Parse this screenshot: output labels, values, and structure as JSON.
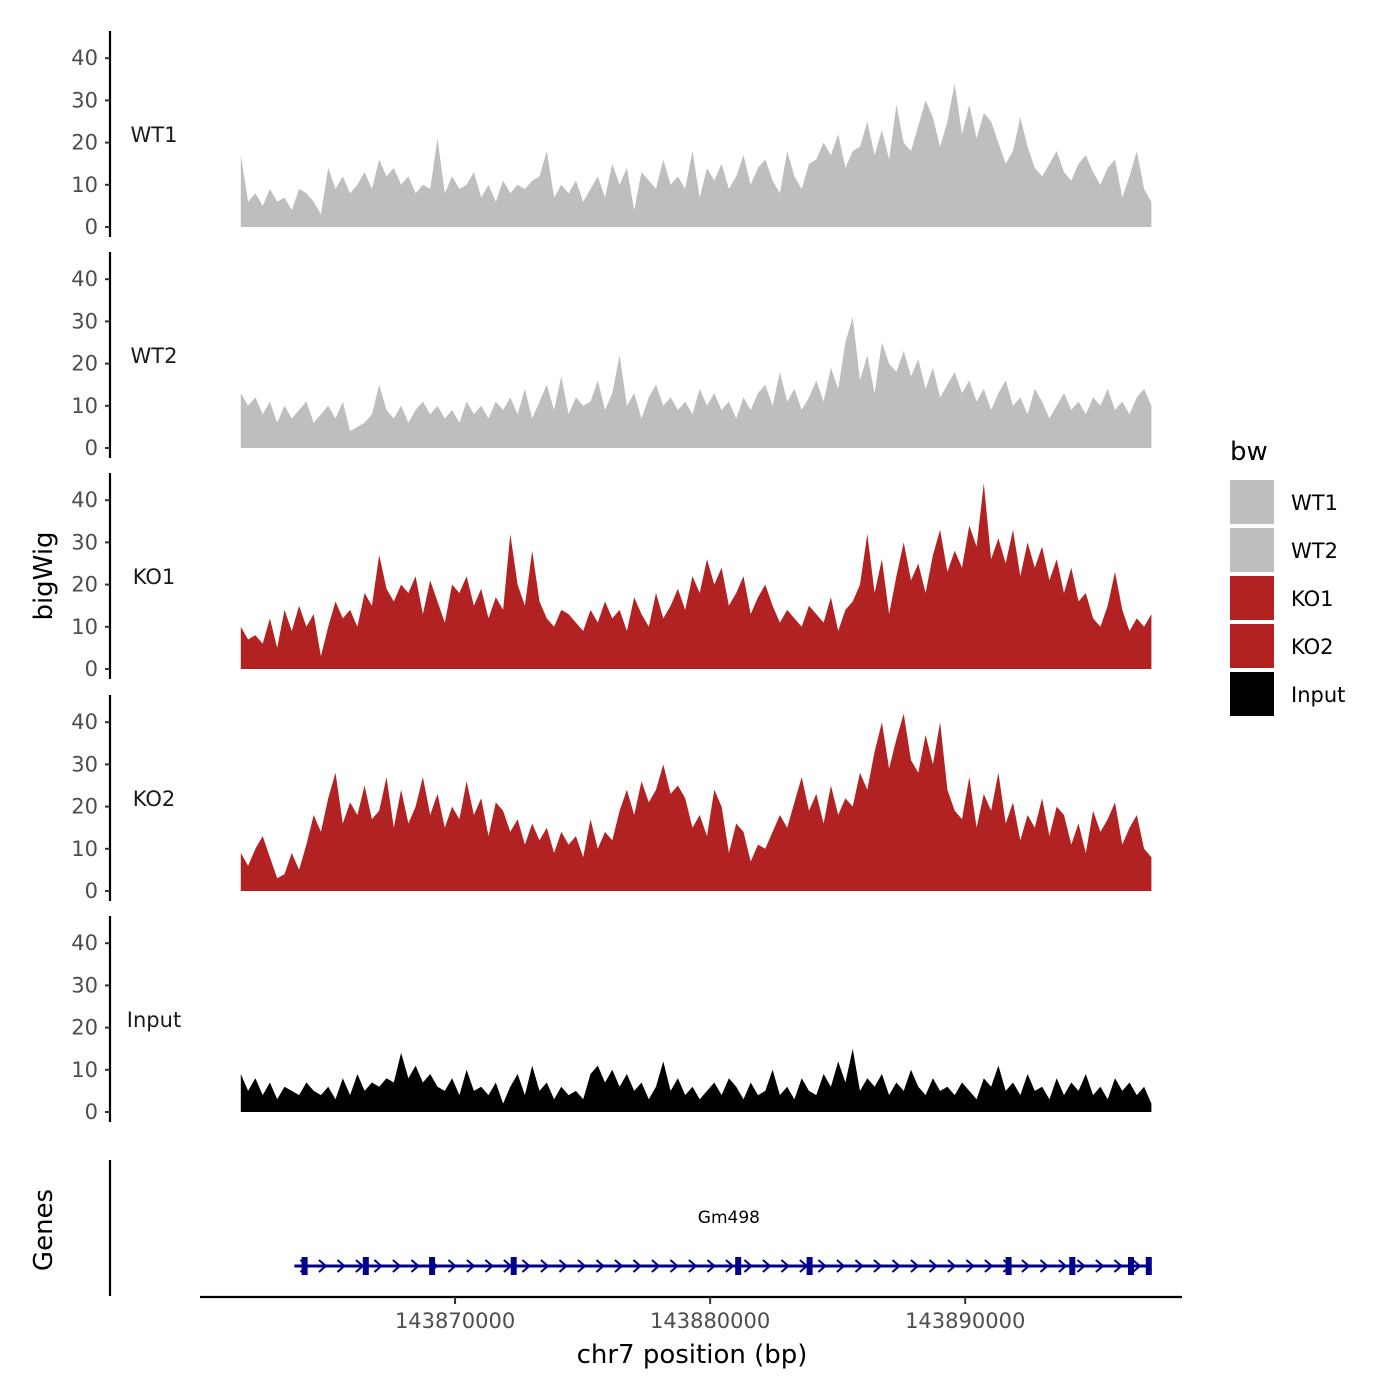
{
  "chart_data": {
    "type": "area",
    "title": "",
    "ylabel": "bigWig",
    "xlabel": "chr7 position (bp)",
    "gene_track_label": "Genes",
    "xlim": [
      143860000,
      143898500
    ],
    "ylim": [
      0,
      45
    ],
    "yticks": [
      0,
      10,
      20,
      30,
      40
    ],
    "ytick_labels": [
      "0",
      "10",
      "20",
      "30",
      "40"
    ],
    "xticks": [
      143870000,
      143880000,
      143890000
    ],
    "xtick_labels": [
      "143870000",
      "143880000",
      "143890000"
    ],
    "x_start": 143861600,
    "x_end": 143897300,
    "legend": {
      "title": "bw",
      "position": "right",
      "entries": [
        {
          "label": "WT1",
          "color": "#bebebe"
        },
        {
          "label": "WT2",
          "color": "#bebebe"
        },
        {
          "label": "KO1",
          "color": "#b22222"
        },
        {
          "label": "KO2",
          "color": "#b22222"
        },
        {
          "label": "Input",
          "color": "#000000"
        }
      ]
    },
    "series": [
      {
        "name": "WT1",
        "color": "#bebebe",
        "values": [
          17,
          6,
          8,
          5,
          9,
          6,
          7,
          4,
          9,
          8,
          6,
          3,
          14,
          9,
          12,
          8,
          10,
          13,
          9,
          16,
          12,
          14,
          10,
          12,
          8,
          10,
          9,
          21,
          8,
          12,
          9,
          10,
          13,
          7,
          10,
          6,
          11,
          8,
          10,
          9,
          11,
          12,
          18,
          7,
          10,
          8,
          11,
          6,
          9,
          12,
          7,
          15,
          10,
          14,
          4,
          13,
          11,
          9,
          16,
          10,
          12,
          9,
          18,
          7,
          14,
          11,
          15,
          9,
          12,
          17,
          10,
          14,
          16,
          11,
          8,
          18,
          12,
          9,
          15,
          16,
          20,
          17,
          22,
          14,
          18,
          19,
          25,
          17,
          23,
          16,
          29,
          20,
          18,
          24,
          30,
          26,
          19,
          25,
          34,
          22,
          29,
          21,
          27,
          25,
          20,
          15,
          18,
          26,
          19,
          14,
          12,
          15,
          18,
          13,
          11,
          15,
          17,
          13,
          10,
          14,
          16,
          7,
          12,
          18,
          9,
          6
        ]
      },
      {
        "name": "WT2",
        "color": "#bebebe",
        "values": [
          13,
          10,
          12,
          8,
          11,
          6,
          10,
          7,
          9,
          11,
          6,
          8,
          10,
          7,
          11,
          4,
          5,
          6,
          8,
          15,
          9,
          7,
          10,
          6,
          9,
          11,
          8,
          10,
          7,
          9,
          6,
          11,
          8,
          10,
          7,
          11,
          9,
          12,
          8,
          14,
          7,
          11,
          15,
          9,
          17,
          8,
          12,
          10,
          11,
          16,
          9,
          13,
          22,
          10,
          13,
          7,
          12,
          15,
          10,
          12,
          9,
          11,
          8,
          14,
          10,
          13,
          9,
          11,
          7,
          12,
          9,
          13,
          15,
          10,
          18,
          11,
          14,
          9,
          12,
          16,
          11,
          19,
          14,
          25,
          31,
          16,
          22,
          13,
          25,
          20,
          18,
          23,
          17,
          21,
          14,
          19,
          12,
          15,
          18,
          13,
          16,
          11,
          14,
          9,
          13,
          16,
          10,
          12,
          8,
          14,
          11,
          7,
          10,
          13,
          9,
          11,
          8,
          12,
          10,
          14,
          9,
          11,
          8,
          12,
          14,
          10
        ]
      },
      {
        "name": "KO1",
        "color": "#b22222",
        "values": [
          10,
          7,
          8,
          6,
          12,
          5,
          14,
          9,
          15,
          10,
          13,
          3,
          10,
          16,
          12,
          14,
          10,
          18,
          15,
          27,
          19,
          16,
          20,
          18,
          22,
          13,
          21,
          16,
          11,
          20,
          18,
          22,
          15,
          19,
          12,
          17,
          14,
          32,
          20,
          15,
          28,
          16,
          12,
          10,
          14,
          13,
          11,
          9,
          14,
          11,
          16,
          12,
          14,
          9,
          17,
          13,
          10,
          18,
          12,
          15,
          19,
          14,
          22,
          18,
          26,
          20,
          24,
          15,
          18,
          22,
          13,
          17,
          20,
          15,
          11,
          14,
          12,
          10,
          15,
          13,
          11,
          17,
          9,
          14,
          16,
          20,
          32,
          18,
          26,
          13,
          22,
          30,
          21,
          25,
          18,
          27,
          33,
          23,
          28,
          24,
          34,
          29,
          44,
          26,
          31,
          25,
          33,
          22,
          30,
          24,
          29,
          21,
          26,
          18,
          24,
          16,
          18,
          12,
          10,
          15,
          23,
          14,
          9,
          12,
          10,
          13
        ]
      },
      {
        "name": "KO2",
        "color": "#b22222",
        "values": [
          9,
          6,
          10,
          13,
          8,
          3,
          4,
          9,
          5,
          11,
          18,
          14,
          22,
          28,
          16,
          21,
          18,
          25,
          17,
          19,
          27,
          15,
          24,
          16,
          20,
          27,
          18,
          23,
          15,
          20,
          17,
          26,
          18,
          22,
          13,
          21,
          19,
          14,
          17,
          11,
          16,
          12,
          15,
          9,
          14,
          11,
          13,
          8,
          17,
          10,
          14,
          12,
          19,
          24,
          18,
          26,
          21,
          24,
          30,
          23,
          25,
          22,
          15,
          18,
          13,
          24,
          20,
          9,
          16,
          14,
          7,
          11,
          10,
          14,
          18,
          15,
          21,
          27,
          19,
          23,
          16,
          25,
          18,
          22,
          20,
          28,
          24,
          33,
          40,
          29,
          36,
          42,
          31,
          28,
          37,
          30,
          40,
          24,
          19,
          17,
          27,
          15,
          23,
          19,
          28,
          16,
          21,
          12,
          18,
          15,
          22,
          13,
          20,
          18,
          11,
          16,
          9,
          19,
          14,
          17,
          21,
          11,
          15,
          18,
          10,
          8
        ]
      },
      {
        "name": "Input",
        "color": "#000000",
        "values": [
          9,
          5,
          8,
          4,
          7,
          3,
          6,
          5,
          4,
          7,
          5,
          4,
          6,
          3,
          8,
          4,
          9,
          5,
          7,
          6,
          8,
          7,
          14,
          8,
          11,
          7,
          9,
          6,
          5,
          8,
          4,
          10,
          5,
          6,
          4,
          7,
          2,
          6,
          9,
          4,
          11,
          5,
          7,
          3,
          6,
          4,
          5,
          3,
          9,
          11,
          7,
          10,
          6,
          9,
          5,
          7,
          3,
          6,
          12,
          5,
          8,
          4,
          6,
          3,
          5,
          7,
          4,
          8,
          6,
          3,
          7,
          4,
          5,
          10,
          4,
          6,
          3,
          8,
          5,
          4,
          9,
          6,
          12,
          7,
          15,
          5,
          8,
          6,
          9,
          4,
          7,
          5,
          10,
          6,
          4,
          8,
          5,
          6,
          4,
          7,
          5,
          3,
          8,
          6,
          11,
          5,
          7,
          4,
          9,
          5,
          6,
          3,
          8,
          4,
          7,
          5,
          9,
          4,
          6,
          3,
          8,
          5,
          7,
          4,
          6,
          2
        ]
      }
    ],
    "genes": [
      {
        "name": "Gm498",
        "start": 143863700,
        "end": 143897300,
        "strand": "+",
        "color": "#00008b",
        "exons": [
          143864100,
          143866500,
          143869100,
          143872300,
          143881100,
          143883900,
          143891700,
          143894200,
          143896500,
          143897200
        ]
      }
    ]
  }
}
